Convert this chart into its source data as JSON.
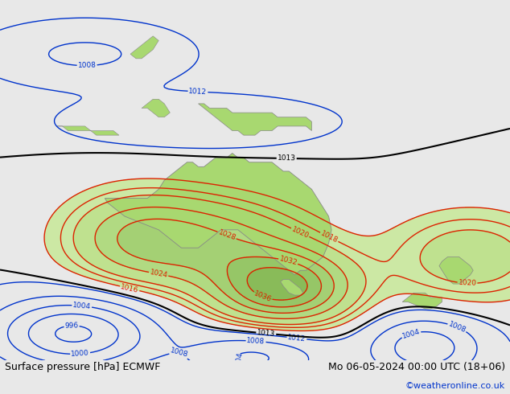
{
  "title_left": "Surface pressure [hPa] ECMWF",
  "title_right": "Mo 06-05-2024 00:00 UTC (18+06)",
  "copyright": "©weatheronline.co.uk",
  "background_color": "#e8e8e8",
  "land_color": "#a8d870",
  "border_color": "#888888",
  "contour_color_red": "#dd2200",
  "contour_color_black": "#000000",
  "contour_color_blue": "#0033cc",
  "text_color_bottom": "#000000",
  "copyright_color": "#0033cc",
  "font_size_bottom": 9,
  "font_size_copyright": 8,
  "figsize": [
    6.34,
    4.9
  ],
  "dpi": 100,
  "lon_min": 95,
  "lon_max": 185,
  "lat_min": -58,
  "lat_max": 22
}
